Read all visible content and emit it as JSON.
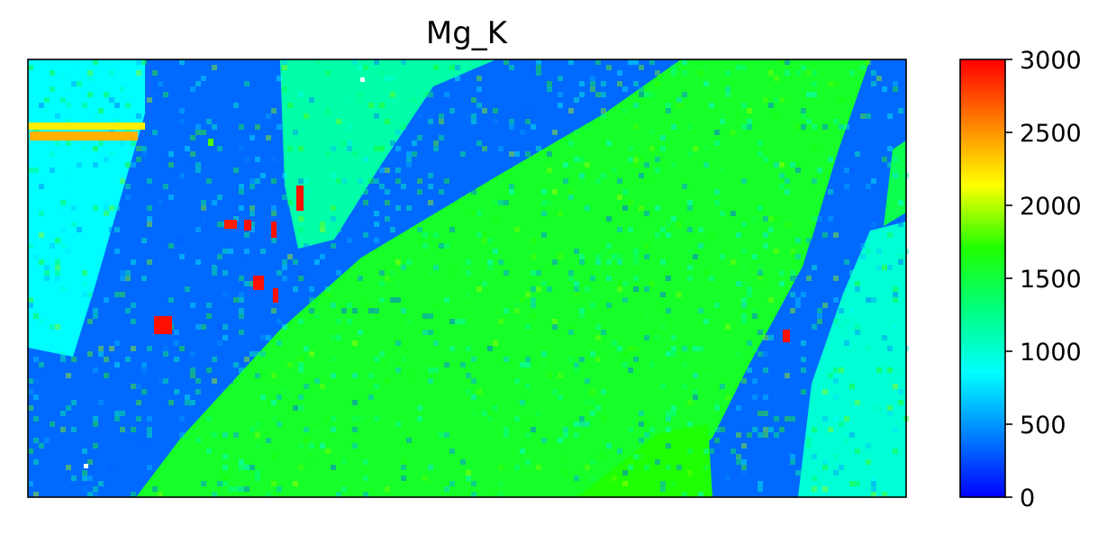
{
  "chart_data": {
    "type": "heatmap",
    "title": "Mg_K",
    "xlabel": "",
    "ylabel": "",
    "colormap": {
      "name": "jet-like",
      "stops": [
        "#0000ff",
        "#0080ff",
        "#00ffff",
        "#00ff80",
        "#20ff00",
        "#ffff00",
        "#ff8000",
        "#ff0000"
      ]
    },
    "colorbar": {
      "range": [
        0,
        3000
      ],
      "ticks": [
        0,
        500,
        1000,
        1500,
        2000,
        2500,
        3000
      ],
      "tick_labels": [
        "0",
        "500",
        "1000",
        "1500",
        "2000",
        "2500",
        "3000"
      ]
    },
    "grid": false,
    "axes_ticks_visible": false,
    "colors": {
      "frame": "#000000",
      "background": "#ffffff"
    }
  }
}
